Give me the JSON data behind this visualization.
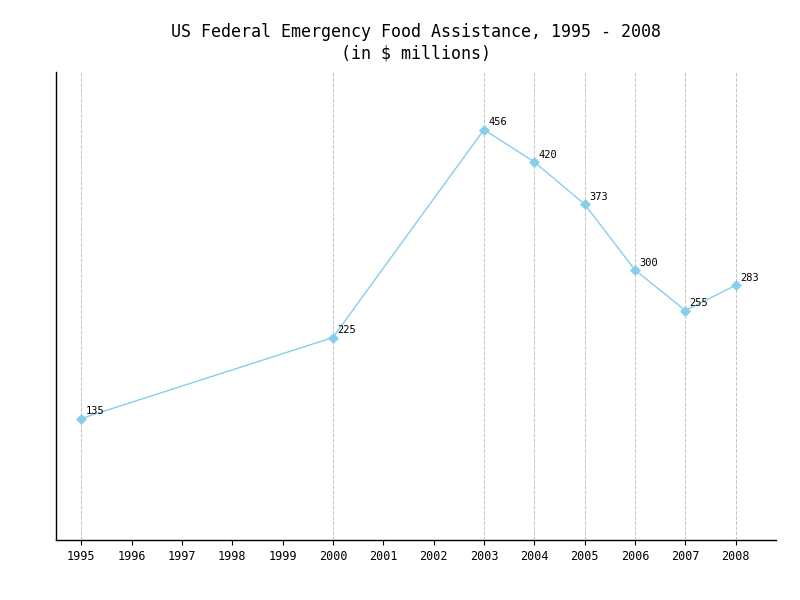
{
  "title_line1": "US Federal Emergency Food Assistance, 1995 - 2008",
  "title_line2": "(in $ millions)",
  "years": [
    1995,
    2000,
    2003,
    2004,
    2005,
    2006,
    2007,
    2008
  ],
  "values": [
    135,
    225,
    456,
    420,
    373,
    300,
    255,
    283
  ],
  "all_years": [
    1995,
    1996,
    1997,
    1998,
    1999,
    2000,
    2001,
    2002,
    2003,
    2004,
    2005,
    2006,
    2007,
    2008
  ],
  "line_color": "#87CEEB",
  "marker_color": "#87CEEB",
  "label_fontsize": 7.5,
  "title_fontsize": 12,
  "background_color": "#ffffff",
  "xlim": [
    1994.5,
    2008.8
  ],
  "ylim": [
    0,
    520
  ],
  "grid_color": "#aaaaaa",
  "spine_color": "#000000"
}
